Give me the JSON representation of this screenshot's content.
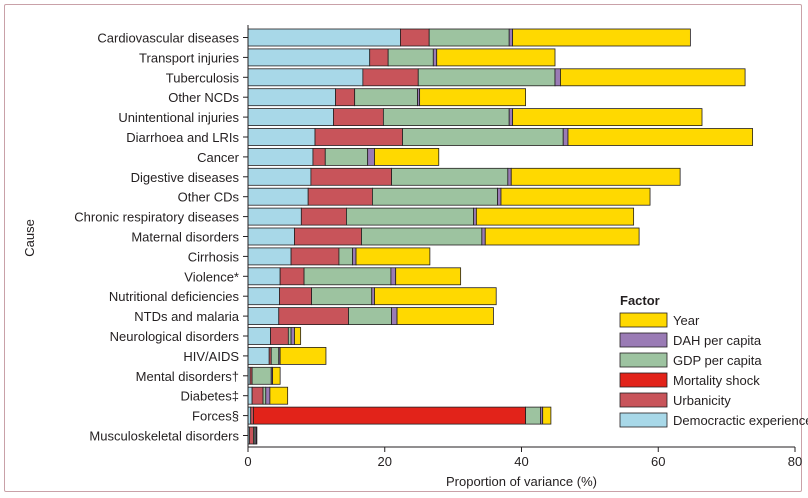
{
  "chart_data": {
    "type": "bar",
    "orientation": "horizontal",
    "stacked": true,
    "xlabel": "Proportion of variance (%)",
    "ylabel": "Cause",
    "xlim": [
      0,
      80
    ],
    "xticks": [
      "0",
      "20",
      "40",
      "60",
      "80"
    ],
    "grid": false,
    "legend": {
      "title": "Factor",
      "placement": "bottom-right"
    },
    "categories": [
      "Cardiovascular diseases",
      "Transport injuries",
      "Tuberculosis",
      "Other NCDs",
      "Unintentional injuries",
      "Diarrhoea and LRIs",
      "Cancer",
      "Digestive diseases",
      "Other CDs",
      "Chronic respiratory diseases",
      "Maternal disorders",
      "Cirrhosis",
      "Violence*",
      "Nutritional deficiencies",
      "NTDs and malaria",
      "Neurological disorders",
      "HIV/AIDS",
      "Mental disorders†",
      "Diabetes‡",
      "Forces§",
      "Musculoskeletal disorders"
    ],
    "series": [
      {
        "name": "Democractic experience",
        "color": "#a8d8e8",
        "values": [
          22.3,
          17.8,
          16.8,
          12.8,
          12.5,
          9.8,
          9.5,
          9.2,
          8.8,
          7.8,
          6.8,
          6.3,
          4.7,
          4.6,
          4.5,
          3.3,
          3.1,
          0.3,
          0.6,
          0.4,
          0.2
        ]
      },
      {
        "name": "Urbanicity",
        "color": "#c8545a",
        "values": [
          4.2,
          2.7,
          8.1,
          2.8,
          7.3,
          12.8,
          1.8,
          11.8,
          9.4,
          6.6,
          9.8,
          7.0,
          3.5,
          4.7,
          10.2,
          2.6,
          0.3,
          0.3,
          1.6,
          0.4,
          0.6
        ]
      },
      {
        "name": "Mortality shock",
        "color": "#e2231a",
        "values": [
          0,
          0,
          0,
          0,
          0,
          0,
          0,
          0,
          0,
          0,
          0,
          0,
          0,
          0,
          0,
          0,
          0,
          0,
          0,
          39.8,
          0
        ]
      },
      {
        "name": "GDP per capita",
        "color": "#9dc3a0",
        "values": [
          11.7,
          6.6,
          20.0,
          9.2,
          18.4,
          23.5,
          6.2,
          17.0,
          18.3,
          18.6,
          17.6,
          2.0,
          12.7,
          8.8,
          6.3,
          0.4,
          1.1,
          2.8,
          0.4,
          2.2,
          0.2
        ]
      },
      {
        "name": "DAH per capita",
        "color": "#9a7bb5",
        "values": [
          0.5,
          0.5,
          0.8,
          0.3,
          0.5,
          0.7,
          1.0,
          0.5,
          0.5,
          0.4,
          0.5,
          0.5,
          0.7,
          0.4,
          0.8,
          0.5,
          0.2,
          0.2,
          0.6,
          0.3,
          0.2
        ]
      },
      {
        "name": "Year",
        "color": "#ffd900",
        "values": [
          26.0,
          17.3,
          27.0,
          15.5,
          27.7,
          27.0,
          9.4,
          24.7,
          21.8,
          23.0,
          22.5,
          10.8,
          9.5,
          17.8,
          14.1,
          0.9,
          6.7,
          1.1,
          2.6,
          1.2,
          0.1
        ]
      }
    ],
    "legend_order": [
      "Year",
      "DAH per capita",
      "GDP per capita",
      "Mortality shock",
      "Urbanicity",
      "Democractic experience"
    ]
  }
}
